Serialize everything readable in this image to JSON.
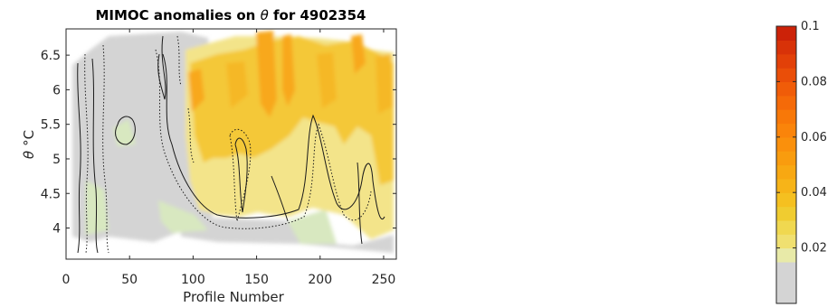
{
  "chart_data": {
    "type": "heatmap",
    "title_prefix": "MIMOC anomalies on ",
    "title_symbol": "θ",
    "title_suffix": " for 4902354",
    "xlabel": "Profile Number",
    "ylabel_symbol": "θ",
    "ylabel_unit": "°C",
    "xlim": [
      0,
      260
    ],
    "ylim": [
      3.55,
      6.88
    ],
    "xticks": [
      "0",
      "50",
      "100",
      "150",
      "200",
      "250"
    ],
    "xtick_values": [
      0,
      50,
      100,
      150,
      200,
      250
    ],
    "yticks": [
      "4",
      "4.5",
      "5",
      "5.5",
      "6",
      "6.5"
    ],
    "ytick_values": [
      4,
      4.5,
      5,
      5.5,
      6,
      6.5
    ],
    "colorbar": {
      "range": [
        0,
        0.1
      ],
      "ticks": [
        "0.02",
        "0.04",
        "0.06",
        "0.08",
        "0.1"
      ],
      "tick_values": [
        0.02,
        0.04,
        0.06,
        0.08,
        0.1
      ],
      "colors": [
        "#d4d4d4",
        "#d4d4d4",
        "#d4d4d4",
        "#e8eaa8",
        "#f0e070",
        "#f0d850",
        "#f0cc30",
        "#f5c020",
        "#f7b418",
        "#f8a812",
        "#f99c0e",
        "#fa900c",
        "#fa840a",
        "#f87808",
        "#f56a08",
        "#f05c08",
        "#ea4e08",
        "#e24008",
        "#d83208",
        "#cc2208"
      ]
    },
    "z_description": "anomaly relative to MIMOC climatology",
    "regions": [
      {
        "name": "grey band (near-zero anomaly)",
        "x_range": [
          0,
          80
        ],
        "y_range": [
          3.75,
          6.85
        ],
        "value": 0.005
      },
      {
        "name": "warm core",
        "x_range": [
          85,
          250
        ],
        "y_range": [
          4.5,
          6.6
        ],
        "value": 0.035
      },
      {
        "name": "strong anomaly columns",
        "x_range": [
          140,
          165
        ],
        "y_range": [
          5.5,
          6.85
        ],
        "value": 0.045
      }
    ],
    "grid": false
  }
}
